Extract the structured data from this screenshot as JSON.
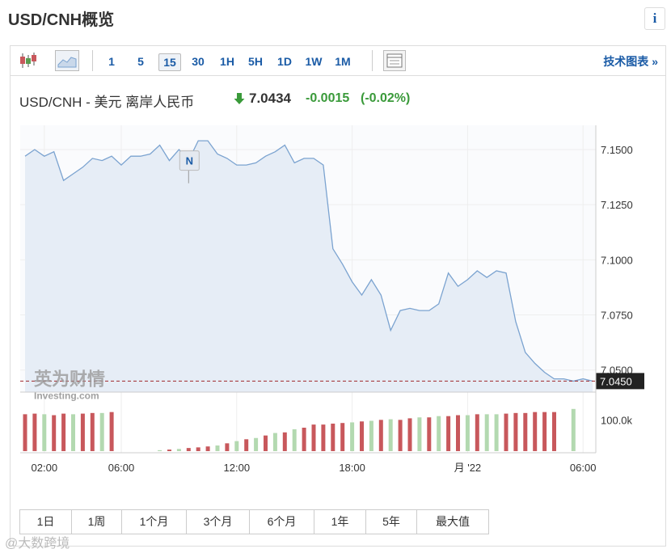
{
  "header": {
    "title": "USD/CNH概览",
    "info": "i"
  },
  "toolbar": {
    "intervals": [
      "1",
      "5",
      "15",
      "30",
      "1H",
      "5H",
      "1D",
      "1W",
      "1M"
    ],
    "technical": "技术图表 »"
  },
  "quote": {
    "name": "USD/CNH - 美元 离岸人民币",
    "price": "7.0434",
    "change": "-0.0015",
    "change_pct": "(-0.02%)"
  },
  "logo": {
    "cn": "英为财情",
    "en": "Investing.com"
  },
  "chart_data": [
    {
      "type": "area",
      "color": "#7ba3d0",
      "fill": "#e6edf6",
      "grid": true,
      "categories": [
        null,
        null,
        "02:00",
        null,
        null,
        null,
        null,
        null,
        null,
        null,
        "06:00",
        null,
        null,
        null,
        null,
        null,
        null,
        null,
        null,
        null,
        null,
        null,
        "12:00",
        null,
        null,
        null,
        null,
        null,
        null,
        null,
        null,
        null,
        null,
        null,
        "18:00",
        null,
        null,
        null,
        null,
        null,
        null,
        null,
        null,
        null,
        null,
        null,
        "月 '22",
        null,
        null,
        null,
        null,
        null,
        null,
        null,
        null,
        null,
        null,
        null,
        "06:00",
        null
      ],
      "values": [
        7.147,
        7.15,
        7.147,
        7.149,
        7.136,
        7.139,
        7.142,
        7.146,
        7.145,
        7.147,
        7.143,
        7.147,
        7.147,
        7.148,
        7.152,
        7.145,
        7.15,
        7.145,
        7.154,
        7.154,
        7.148,
        7.146,
        7.143,
        7.143,
        7.144,
        7.147,
        7.149,
        7.152,
        7.144,
        7.146,
        7.146,
        7.143,
        7.105,
        7.098,
        7.09,
        7.084,
        7.091,
        7.084,
        7.068,
        7.077,
        7.078,
        7.077,
        7.077,
        7.08,
        7.094,
        7.088,
        7.091,
        7.095,
        7.092,
        7.095,
        7.094,
        7.072,
        7.058,
        7.053,
        7.049,
        7.046,
        7.046,
        7.045,
        7.046,
        7.045
      ],
      "ylim": [
        7.04,
        7.161
      ],
      "yticks": [
        {
          "value": 7.15,
          "label": "7.1500"
        },
        {
          "value": 7.125,
          "label": "7.1250"
        },
        {
          "value": 7.1,
          "label": "7.1000"
        },
        {
          "value": 7.075,
          "label": "7.0750"
        },
        {
          "value": 7.05,
          "label": "7.0500"
        }
      ],
      "last": {
        "value": 7.045,
        "label": "7.0450"
      },
      "annotation": "N"
    },
    {
      "type": "bar",
      "values": [
        118000,
        120000,
        118000,
        115000,
        120000,
        118000,
        120000,
        122000,
        122000,
        125000,
        0,
        0,
        0,
        0,
        3000,
        5000,
        7000,
        10000,
        12000,
        15000,
        18000,
        25000,
        32000,
        38000,
        42000,
        50000,
        58000,
        60000,
        70000,
        75000,
        85000,
        85000,
        88000,
        90000,
        92000,
        95000,
        97000,
        100000,
        102000,
        100000,
        105000,
        108000,
        108000,
        112000,
        112000,
        115000,
        115000,
        118000,
        118000,
        118000,
        120000,
        122000,
        122000,
        125000,
        125000,
        125000,
        0,
        135000,
        0,
        0
      ],
      "colors": [
        "#c8585c",
        "#c8585c",
        "#b3d9b0",
        "#c8585c",
        "#c8585c",
        "#b3d9b0",
        "#c8585c",
        "#c8585c",
        "#b3d9b0",
        "#c8585c",
        "#b3d9b0",
        "#b3d9b0",
        "#b3d9b0",
        "#b3d9b0",
        "#b3d9b0",
        "#c8585c",
        "#b3d9b0",
        "#c8585c",
        "#c8585c",
        "#c8585c",
        "#b3d9b0",
        "#c8585c",
        "#b3d9b0",
        "#c8585c",
        "#b3d9b0",
        "#c8585c",
        "#b3d9b0",
        "#c8585c",
        "#b3d9b0",
        "#c8585c",
        "#c8585c",
        "#c8585c",
        "#c8585c",
        "#c8585c",
        "#b3d9b0",
        "#c8585c",
        "#b3d9b0",
        "#c8585c",
        "#b3d9b0",
        "#c8585c",
        "#c8585c",
        "#b3d9b0",
        "#c8585c",
        "#b3d9b0",
        "#c8585c",
        "#c8585c",
        "#b3d9b0",
        "#c8585c",
        "#b3d9b0",
        "#b3d9b0",
        "#c8585c",
        "#c8585c",
        "#c8585c",
        "#c8585c",
        "#c8585c",
        "#c8585c",
        "#b3d9b0",
        "#b3d9b0",
        "#b3d9b0",
        "#b3d9b0"
      ],
      "ylim": [
        0,
        150000
      ],
      "yticks": [
        {
          "value": 100000,
          "label": "100.0k"
        }
      ]
    }
  ],
  "ranges": [
    "1日",
    "1周",
    "1个月",
    "3个月",
    "6个月",
    "1年",
    "5年",
    "最大值"
  ],
  "watermark": "@大数跨境"
}
